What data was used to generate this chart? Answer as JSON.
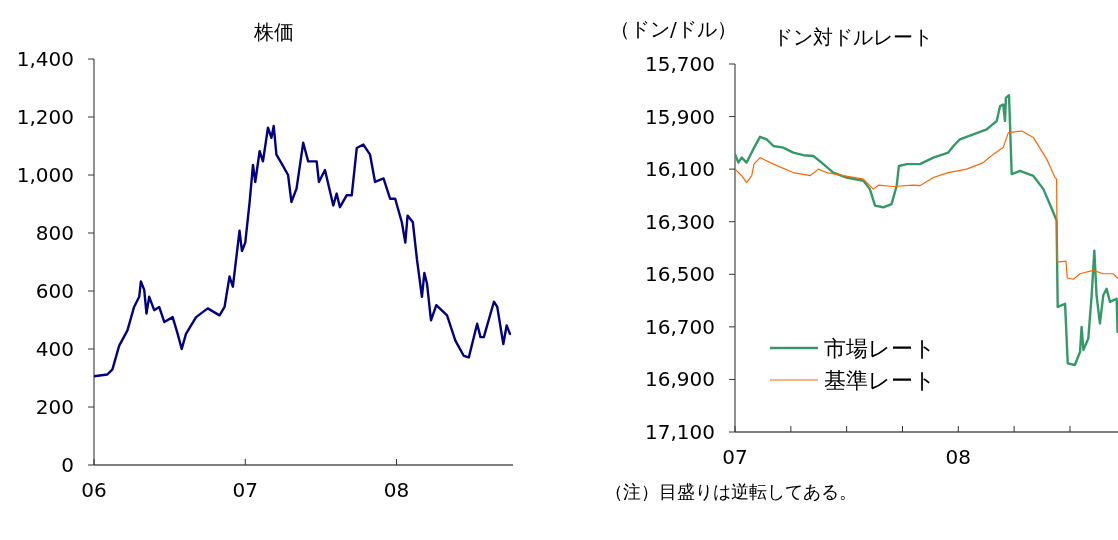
{
  "chart_data": [
    {
      "type": "line",
      "title": "株価",
      "xlim": [
        2006,
        2008.77
      ],
      "xticks": [
        {
          "value": 2006,
          "label": "06"
        },
        {
          "value": 2007,
          "label": "07"
        },
        {
          "value": 2008,
          "label": "08"
        }
      ],
      "ylim": [
        0,
        1400
      ],
      "yticks": [
        0,
        200,
        400,
        600,
        800,
        {
          "value": 1000,
          "label": "1,000"
        },
        {
          "value": 1200,
          "label": "1,200"
        },
        {
          "value": 1400,
          "label": "1,400"
        }
      ],
      "x": [
        2006.0,
        2006.088,
        2006.122,
        2006.166,
        2006.221,
        2006.265,
        2006.299,
        2006.31,
        2006.332,
        2006.347,
        2006.365,
        2006.398,
        2006.431,
        2006.465,
        2006.52,
        2006.553,
        2006.58,
        2006.608,
        2006.675,
        2006.752,
        2006.83,
        2006.863,
        2006.896,
        2006.918,
        2006.962,
        2006.978,
        2007.0,
        2007.029,
        2007.051,
        2007.066,
        2007.095,
        2007.117,
        2007.15,
        2007.173,
        2007.188,
        2007.206,
        2007.239,
        2007.283,
        2007.305,
        2007.339,
        2007.383,
        2007.416,
        2007.472,
        2007.487,
        2007.527,
        2007.582,
        2007.604,
        2007.626,
        2007.67,
        2007.704,
        2007.737,
        2007.781,
        2007.825,
        2007.858,
        2007.914,
        2007.958,
        2007.991,
        2008.035,
        2008.058,
        2008.073,
        2008.108,
        2008.135,
        2008.168,
        2008.184,
        2008.201,
        2008.228,
        2008.263,
        2008.334,
        2008.389,
        2008.445,
        2008.478,
        2008.533,
        2008.555,
        2008.577,
        2008.644,
        2008.666,
        2008.706,
        2008.728,
        2008.75
      ],
      "series": [
        {
          "color": "#000080",
          "values": [
            306,
            312,
            330,
            411,
            464,
            545,
            580,
            633,
            604,
            522,
            580,
            534,
            545,
            493,
            510,
            452,
            400,
            452,
            510,
            540,
            516,
            545,
            650,
            615,
            808,
            738,
            767,
            907,
            1035,
            976,
            1082,
            1047,
            1163,
            1128,
            1169,
            1070,
            1041,
            1000,
            907,
            953,
            1111,
            1047,
            1047,
            976,
            1017,
            895,
            936,
            889,
            930,
            930,
            1093,
            1105,
            1070,
            976,
            988,
            918,
            918,
            837,
            767,
            860,
            837,
            709,
            580,
            662,
            627,
            499,
            551,
            516,
            429,
            376,
            371,
            487,
            441,
            441,
            563,
            545,
            417,
            481,
            452
          ]
        }
      ]
    },
    {
      "type": "line",
      "title": "ドン対ドルレート",
      "ylabel": "（ドン/ドル）",
      "legend": "bottom left",
      "annotations": [
        "（注）目盛りは逆転してある。"
      ],
      "xlim": [
        2007,
        2008.715
      ],
      "xticks": [
        {
          "value": 2007,
          "label": "07"
        },
        {
          "value": 2007.25,
          "label": null
        },
        {
          "value": 2007.5,
          "label": null
        },
        {
          "value": 2007.75,
          "label": null
        },
        {
          "value": 2008,
          "label": "08"
        },
        {
          "value": 2008.25,
          "label": null
        },
        {
          "value": 2008.5,
          "label": null
        }
      ],
      "ylim": [
        17100,
        15700
      ],
      "yticks": [
        {
          "value": 15700,
          "label": "15,700"
        },
        {
          "value": 15900,
          "label": "15,900"
        },
        {
          "value": 16100,
          "label": "16,100"
        },
        {
          "value": 16300,
          "label": "16,300"
        },
        {
          "value": 16500,
          "label": "16,500"
        },
        {
          "value": 16700,
          "label": "16,700"
        },
        {
          "value": 16900,
          "label": "16,900"
        },
        {
          "value": 17100,
          "label": "17,100"
        }
      ],
      "series": [
        {
          "name": "市場レート",
          "color": "#339966",
          "x": [
            2007.0,
            2007.015,
            2007.03,
            2007.052,
            2007.082,
            2007.112,
            2007.142,
            2007.172,
            2007.216,
            2007.261,
            2007.306,
            2007.351,
            2007.396,
            2007.44,
            2007.5,
            2007.575,
            2007.604,
            2007.627,
            2007.664,
            2007.701,
            2007.724,
            2007.734,
            2007.769,
            2007.828,
            2007.888,
            2007.955,
            2007.978,
            2008.007,
            2008.067,
            2008.127,
            2008.172,
            2008.187,
            2008.201,
            2008.209,
            2008.213,
            2008.227,
            2008.239,
            2008.276,
            2008.336,
            2008.381,
            2008.425,
            2008.44,
            2008.445,
            2008.478,
            2008.49,
            2008.522,
            2008.545,
            2008.552,
            2008.56,
            2008.582,
            2008.597,
            2008.609,
            2008.619,
            2008.634,
            2008.649,
            2008.664,
            2008.679,
            2008.709,
            2008.713
          ],
          "values": [
            16043,
            16075,
            16056,
            16075,
            16024,
            15977,
            15987,
            16012,
            16018,
            16037,
            16047,
            16050,
            16081,
            16113,
            16132,
            16144,
            16176,
            16239,
            16245,
            16233,
            16163,
            16088,
            16081,
            16081,
            16056,
            16037,
            16012,
            15987,
            15968,
            15949,
            15917,
            15860,
            15854,
            15917,
            15829,
            15819,
            16119,
            16107,
            16126,
            16176,
            16264,
            16296,
            16624,
            16612,
            16839,
            16845,
            16795,
            16700,
            16788,
            16744,
            16580,
            16410,
            16580,
            16687,
            16580,
            16555,
            16605,
            16593,
            16719
          ]
        },
        {
          "name": "基準レート",
          "color": "#ff6600",
          "x": [
            2007.0,
            2007.03,
            2007.052,
            2007.075,
            2007.085,
            2007.112,
            2007.172,
            2007.261,
            2007.336,
            2007.373,
            2007.41,
            2007.485,
            2007.575,
            2007.619,
            2007.642,
            2007.709,
            2007.799,
            2007.828,
            2007.888,
            2007.955,
            2008.037,
            2008.112,
            2008.157,
            2008.201,
            2008.224,
            2008.284,
            2008.336,
            2008.396,
            2008.433,
            2008.44,
            2008.443,
            2008.482,
            2008.488,
            2008.515,
            2008.545,
            2008.604,
            2008.649,
            2008.693,
            2008.713
          ],
          "values": [
            16100,
            16125,
            16151,
            16125,
            16081,
            16056,
            16081,
            16113,
            16125,
            16100,
            16113,
            16125,
            16138,
            16176,
            16161,
            16166,
            16161,
            16163,
            16132,
            16113,
            16100,
            16075,
            16043,
            16018,
            15961,
            15955,
            15980,
            16062,
            16132,
            16138,
            16454,
            16450,
            16514,
            16519,
            16498,
            16485,
            16498,
            16498,
            16514
          ]
        }
      ]
    }
  ]
}
